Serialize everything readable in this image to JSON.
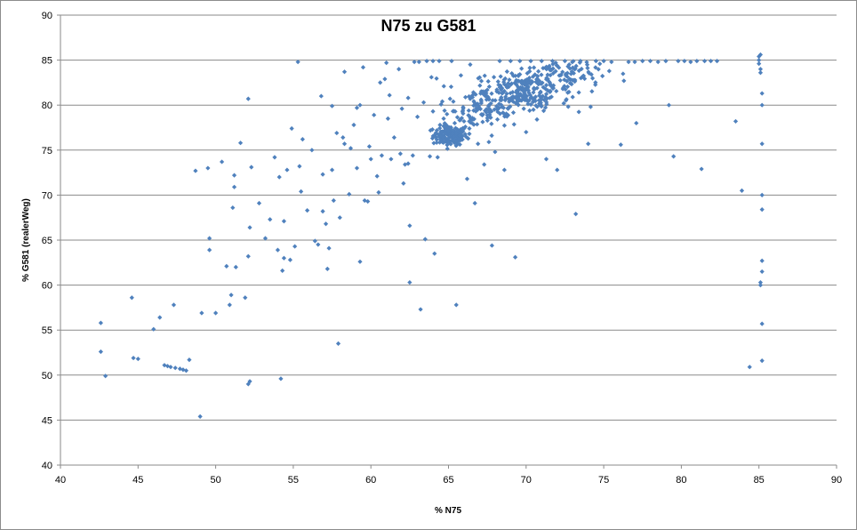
{
  "chart_data": {
    "type": "scatter",
    "title": "N75 zu G581",
    "xlabel": "% N75",
    "ylabel": "% G581 (realerWeg)",
    "xlim": [
      40,
      90
    ],
    "ylim": [
      40,
      90
    ],
    "xticks": [
      40,
      45,
      50,
      55,
      60,
      65,
      70,
      75,
      80,
      85,
      90
    ],
    "yticks": [
      40,
      45,
      50,
      55,
      60,
      65,
      70,
      75,
      80,
      85,
      90
    ],
    "grid": "horizontal",
    "legend": "none",
    "marker_color": "#4f81bd",
    "series": [
      {
        "points": [
          [
            42.6,
            55.8
          ],
          [
            42.6,
            52.6
          ],
          [
            42.9,
            49.9
          ],
          [
            44.6,
            58.6
          ],
          [
            44.7,
            51.9
          ],
          [
            45.0,
            51.8
          ],
          [
            46.0,
            55.1
          ],
          [
            46.4,
            56.4
          ],
          [
            46.7,
            51.1
          ],
          [
            46.9,
            51.0
          ],
          [
            47.1,
            50.9
          ],
          [
            47.4,
            50.8
          ],
          [
            47.7,
            50.7
          ],
          [
            47.9,
            50.6
          ],
          [
            48.1,
            50.5
          ],
          [
            48.3,
            51.7
          ],
          [
            47.3,
            57.8
          ],
          [
            48.7,
            72.7
          ],
          [
            49.0,
            45.4
          ],
          [
            49.1,
            56.9
          ],
          [
            49.5,
            73.0
          ],
          [
            49.6,
            65.2
          ],
          [
            49.6,
            63.9
          ],
          [
            50.0,
            56.9
          ],
          [
            50.4,
            73.7
          ],
          [
            50.7,
            62.1
          ],
          [
            50.9,
            57.8
          ],
          [
            51.0,
            58.9
          ],
          [
            51.1,
            68.6
          ],
          [
            51.2,
            72.2
          ],
          [
            51.2,
            70.9
          ],
          [
            51.3,
            62.0
          ],
          [
            51.6,
            75.8
          ],
          [
            51.9,
            58.6
          ],
          [
            52.1,
            63.2
          ],
          [
            52.1,
            80.7
          ],
          [
            52.1,
            49.0
          ],
          [
            52.2,
            49.3
          ],
          [
            52.3,
            73.1
          ],
          [
            52.2,
            66.4
          ],
          [
            52.8,
            69.1
          ],
          [
            53.2,
            65.2
          ],
          [
            53.5,
            67.3
          ],
          [
            53.8,
            74.2
          ],
          [
            54.0,
            63.9
          ],
          [
            54.1,
            72.0
          ],
          [
            54.2,
            49.6
          ],
          [
            54.3,
            61.6
          ],
          [
            54.4,
            67.1
          ],
          [
            54.4,
            63.0
          ],
          [
            54.6,
            72.8
          ],
          [
            54.8,
            62.8
          ],
          [
            54.9,
            77.4
          ],
          [
            55.1,
            64.3
          ],
          [
            55.3,
            84.8
          ],
          [
            55.4,
            73.2
          ],
          [
            55.5,
            70.4
          ],
          [
            55.6,
            76.2
          ],
          [
            55.9,
            68.3
          ],
          [
            56.2,
            75.0
          ],
          [
            56.4,
            64.9
          ],
          [
            56.6,
            64.5
          ],
          [
            56.8,
            81.0
          ],
          [
            56.9,
            72.3
          ],
          [
            56.9,
            68.2
          ],
          [
            57.1,
            66.8
          ],
          [
            57.2,
            61.8
          ],
          [
            57.3,
            64.1
          ],
          [
            57.5,
            79.9
          ],
          [
            57.5,
            72.8
          ],
          [
            57.6,
            69.4
          ],
          [
            57.8,
            76.9
          ],
          [
            57.9,
            53.5
          ],
          [
            58.0,
            67.5
          ],
          [
            58.2,
            76.4
          ],
          [
            58.3,
            83.7
          ],
          [
            58.3,
            75.7
          ],
          [
            58.6,
            70.1
          ],
          [
            58.7,
            75.2
          ],
          [
            58.9,
            77.8
          ],
          [
            59.1,
            79.7
          ],
          [
            59.1,
            73.0
          ],
          [
            59.3,
            80.0
          ],
          [
            59.3,
            62.6
          ],
          [
            59.5,
            84.2
          ],
          [
            59.6,
            69.4
          ],
          [
            59.8,
            69.3
          ],
          [
            59.9,
            75.4
          ],
          [
            60.0,
            74.0
          ],
          [
            60.2,
            78.9
          ],
          [
            60.4,
            72.1
          ],
          [
            60.5,
            70.3
          ],
          [
            60.6,
            82.5
          ],
          [
            60.7,
            74.4
          ],
          [
            60.9,
            82.9
          ],
          [
            61.0,
            84.7
          ],
          [
            61.1,
            78.5
          ],
          [
            61.2,
            81.1
          ],
          [
            61.3,
            74.0
          ],
          [
            61.5,
            76.4
          ],
          [
            61.8,
            84.0
          ],
          [
            61.9,
            74.6
          ],
          [
            62.0,
            79.6
          ],
          [
            62.1,
            71.3
          ],
          [
            62.2,
            73.4
          ],
          [
            62.4,
            73.5
          ],
          [
            62.4,
            80.8
          ],
          [
            62.5,
            66.6
          ],
          [
            62.5,
            60.3
          ],
          [
            62.7,
            74.4
          ],
          [
            62.8,
            84.8
          ],
          [
            63.0,
            78.7
          ],
          [
            63.1,
            84.8
          ],
          [
            63.2,
            57.3
          ],
          [
            63.4,
            80.3
          ],
          [
            63.5,
            65.1
          ],
          [
            63.6,
            84.9
          ],
          [
            63.8,
            74.3
          ],
          [
            63.9,
            83.1
          ],
          [
            64.0,
            79.3
          ],
          [
            64.0,
            84.9
          ],
          [
            64.1,
            63.5
          ],
          [
            64.3,
            74.2
          ],
          [
            64.4,
            84.9
          ],
          [
            64.6,
            80.4
          ],
          [
            64.7,
            82.1
          ],
          [
            64.8,
            77.9
          ],
          [
            64.9,
            79.0
          ],
          [
            65.1,
            80.7
          ],
          [
            65.2,
            84.9
          ],
          [
            65.4,
            78.0
          ],
          [
            65.5,
            57.8
          ],
          [
            65.6,
            75.7
          ],
          [
            65.8,
            83.3
          ],
          [
            66.0,
            78.2
          ],
          [
            66.2,
            71.8
          ],
          [
            66.4,
            84.5
          ],
          [
            66.7,
            69.1
          ],
          [
            66.9,
            75.7
          ],
          [
            67.1,
            80.6
          ],
          [
            67.3,
            73.4
          ],
          [
            67.6,
            75.9
          ],
          [
            67.8,
            64.4
          ],
          [
            68.0,
            74.8
          ],
          [
            68.3,
            84.9
          ],
          [
            68.6,
            72.8
          ],
          [
            69.0,
            84.9
          ],
          [
            69.3,
            63.1
          ],
          [
            69.6,
            84.9
          ],
          [
            70.0,
            77.0
          ],
          [
            70.3,
            84.9
          ],
          [
            70.7,
            78.4
          ],
          [
            71.0,
            84.9
          ],
          [
            71.3,
            74.0
          ],
          [
            71.7,
            84.9
          ],
          [
            72.0,
            72.8
          ],
          [
            72.5,
            84.9
          ],
          [
            73.0,
            80.9
          ],
          [
            73.2,
            67.9
          ],
          [
            73.5,
            84.9
          ],
          [
            74.0,
            75.7
          ],
          [
            74.5,
            84.9
          ],
          [
            75.0,
            84.9
          ],
          [
            75.5,
            84.8
          ],
          [
            76.1,
            75.6
          ],
          [
            76.3,
            82.7
          ],
          [
            76.6,
            84.8
          ],
          [
            77.0,
            84.8
          ],
          [
            77.1,
            78.0
          ],
          [
            77.5,
            84.9
          ],
          [
            78.0,
            84.9
          ],
          [
            78.5,
            84.8
          ],
          [
            79.0,
            84.9
          ],
          [
            79.2,
            80.0
          ],
          [
            79.5,
            74.3
          ],
          [
            79.8,
            84.9
          ],
          [
            80.2,
            84.9
          ],
          [
            80.6,
            84.8
          ],
          [
            81.0,
            84.9
          ],
          [
            81.3,
            72.9
          ],
          [
            81.5,
            84.9
          ],
          [
            81.9,
            84.9
          ],
          [
            82.3,
            84.9
          ],
          [
            83.5,
            78.2
          ],
          [
            83.9,
            70.5
          ],
          [
            84.4,
            50.9
          ],
          [
            85.0,
            85.4
          ],
          [
            85.0,
            85.0
          ],
          [
            85.0,
            84.6
          ],
          [
            85.1,
            84.0
          ],
          [
            85.1,
            83.6
          ],
          [
            85.1,
            85.6
          ],
          [
            85.2,
            81.3
          ],
          [
            85.2,
            80.0
          ],
          [
            85.2,
            75.7
          ],
          [
            85.2,
            70.0
          ],
          [
            85.2,
            68.4
          ],
          [
            85.2,
            62.7
          ],
          [
            85.2,
            61.5
          ],
          [
            85.1,
            60.3
          ],
          [
            85.1,
            60.0
          ],
          [
            85.2,
            55.7
          ],
          [
            85.2,
            51.6
          ]
        ],
        "clusters": [
          {
            "center": [
              65.1,
              76.6
            ],
            "spread": [
              0.55,
              0.55
            ],
            "count": 140
          },
          {
            "center": [
              69.8,
              81.8
            ],
            "spread": [
              1.6,
              1.0
            ],
            "count": 210
          },
          {
            "center": [
              67.6,
              79.4
            ],
            "spread": [
              1.1,
              1.0
            ],
            "count": 70
          },
          {
            "center": [
              72.5,
              83.6
            ],
            "spread": [
              1.5,
              0.7
            ],
            "count": 80
          },
          {
            "center": [
              70.2,
              80.6
            ],
            "spread": [
              0.9,
              0.7
            ],
            "count": 45
          },
          {
            "center": [
              66.2,
              78.4
            ],
            "spread": [
              0.8,
              0.9
            ],
            "count": 35
          }
        ]
      }
    ]
  }
}
